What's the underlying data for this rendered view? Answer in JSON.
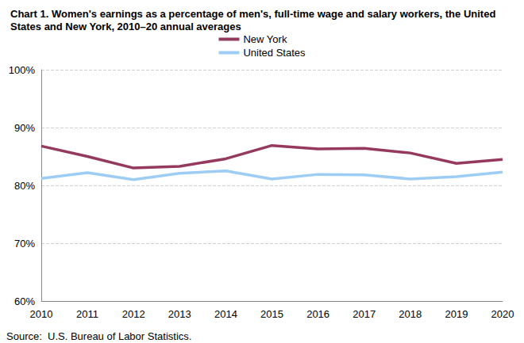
{
  "chart_data": {
    "type": "line",
    "title": "Chart 1. Women's earnings as a percentage of men's, full-time wage and salary workers, the United States and New York, 2010–20 annual averages",
    "annotations": [
      "Source:  U.S. Bureau of Labor Statistics."
    ],
    "categories": [
      "2010",
      "2011",
      "2012",
      "2013",
      "2014",
      "2015",
      "2016",
      "2017",
      "2018",
      "2019",
      "2020"
    ],
    "series": [
      {
        "name": "New York",
        "color": "#953a5e",
        "values": [
          86.8,
          85.0,
          83.0,
          83.3,
          84.6,
          86.9,
          86.3,
          86.4,
          85.6,
          83.8,
          84.5
        ]
      },
      {
        "name": "United States",
        "color": "#9dcdf5",
        "values": [
          81.2,
          82.2,
          81.0,
          82.1,
          82.5,
          81.1,
          81.9,
          81.8,
          81.1,
          81.5,
          82.3
        ]
      }
    ],
    "ylim": [
      60,
      100
    ],
    "yticks": [
      {
        "value": 60,
        "label": "60%"
      },
      {
        "value": 70,
        "label": "70%"
      },
      {
        "value": 80,
        "label": "80%"
      },
      {
        "value": 90,
        "label": "90%"
      },
      {
        "value": 100,
        "label": "100%"
      }
    ],
    "grid": true,
    "legend": "top",
    "marker": "none",
    "line_style": "solid"
  }
}
